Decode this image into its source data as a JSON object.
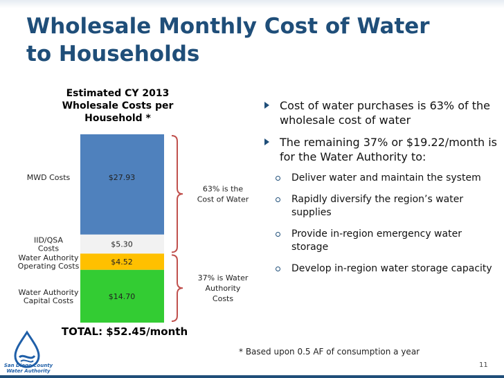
{
  "slide": {
    "title_line1": "Wholesale Monthly Cost of Water",
    "title_line2": "to Households",
    "page_number": "11",
    "footnote": "* Based upon 0.5 AF of consumption a year",
    "logo_line1": "San Diego County",
    "logo_line2": "Water Authority"
  },
  "chart_data": {
    "type": "bar",
    "stacked": true,
    "title_lines": [
      "Estimated CY 2013",
      "Wholesale Costs per",
      "Household *"
    ],
    "series": [
      {
        "name_lines": [
          "MWD Costs"
        ],
        "value": 27.93,
        "label": "$27.93",
        "color": "#4f81bd"
      },
      {
        "name_lines": [
          "IID/QSA",
          "Costs"
        ],
        "value": 5.3,
        "label": "$5.30",
        "color": "#f2f2f2"
      },
      {
        "name_lines": [
          "Water Authority",
          "Operating  Costs"
        ],
        "value": 4.52,
        "label": "$4.52",
        "color": "#ffc000"
      },
      {
        "name_lines": [
          "Water Authority",
          "Capital Costs"
        ],
        "value": 14.7,
        "label": "$14.70",
        "color": "#33cc33"
      }
    ],
    "total_label": "TOTAL: $52.45/month",
    "brackets": [
      {
        "from": 0,
        "to": 1,
        "text_lines": [
          "63% is the",
          "Cost of Water"
        ]
      },
      {
        "from": 2,
        "to": 3,
        "text_lines": [
          "37% is Water",
          "Authority",
          "Costs"
        ]
      }
    ],
    "bracket_color": "#c0504d"
  },
  "bullets": [
    {
      "level": 1,
      "text": "Cost of water purchases is 63% of the wholesale cost of water"
    },
    {
      "level": 1,
      "text": "The remaining 37% or $19.22/month is for the Water Authority to:"
    },
    {
      "level": 2,
      "text": "Deliver water and maintain the system"
    },
    {
      "level": 2,
      "text": "Rapidly diversify the region’s water supplies"
    },
    {
      "level": 2,
      "text": "Provide in-region emergency water storage"
    },
    {
      "level": 2,
      "text": "Develop in-region water storage capacity"
    }
  ]
}
